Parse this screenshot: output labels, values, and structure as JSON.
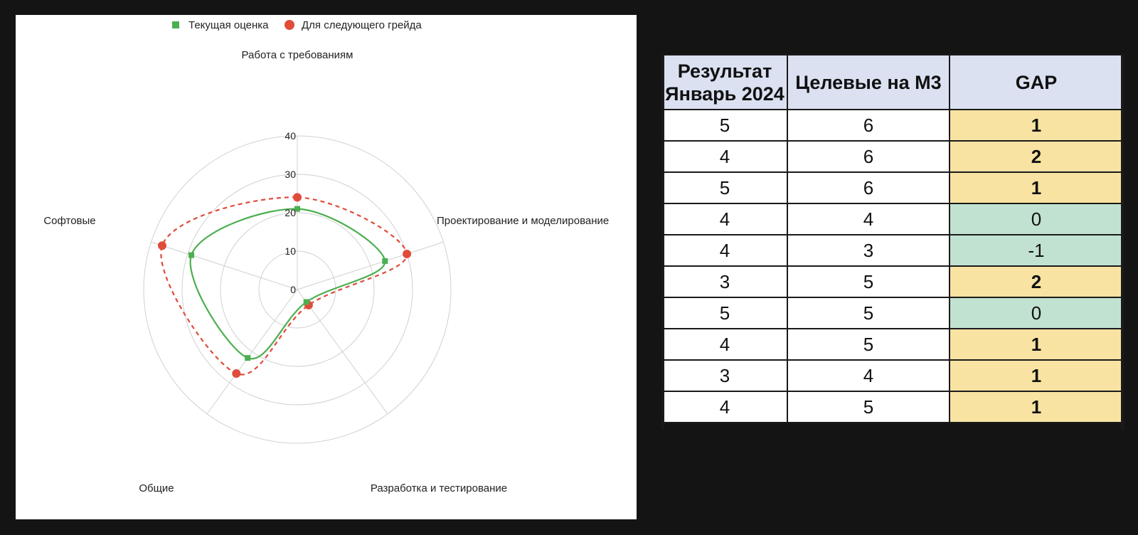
{
  "chart_data": {
    "type": "radar",
    "axes": [
      "Работа с требованиям",
      "Проектирование и моделирование",
      "Разработка и тестирование",
      "Общие",
      "Софтовые"
    ],
    "radial_ticks": [
      "0",
      "10",
      "20",
      "30",
      "40"
    ],
    "rlim": [
      0,
      40
    ],
    "grid": true,
    "legend_position": "top",
    "series": [
      {
        "name": "Текущая оценка",
        "values": [
          21,
          24,
          4,
          22,
          29
        ],
        "color": "#4caf50",
        "marker": "square",
        "line": "solid"
      },
      {
        "name": "Для следующего грейда",
        "values": [
          24,
          30,
          5,
          27,
          37
        ],
        "color": "#e04b3a",
        "marker": "circle",
        "line": "dashed"
      }
    ]
  },
  "table": {
    "headers": [
      "Результат Январь 2024",
      "Целевые на М3",
      "GAP"
    ],
    "rows": [
      {
        "result": "5",
        "target": "6",
        "gap": "1"
      },
      {
        "result": "4",
        "target": "6",
        "gap": "2"
      },
      {
        "result": "5",
        "target": "6",
        "gap": "1"
      },
      {
        "result": "4",
        "target": "4",
        "gap": "0"
      },
      {
        "result": "4",
        "target": "3",
        "gap": "-1"
      },
      {
        "result": "3",
        "target": "5",
        "gap": "2"
      },
      {
        "result": "5",
        "target": "5",
        "gap": "0"
      },
      {
        "result": "4",
        "target": "5",
        "gap": "1"
      },
      {
        "result": "3",
        "target": "4",
        "gap": "1"
      },
      {
        "result": "4",
        "target": "5",
        "gap": "1"
      }
    ]
  },
  "colors": {
    "gap_positive": "#f9e3a2",
    "gap_nonpositive": "#c2e2d1",
    "header_bg": "#dbe1f1",
    "grid": "#d0d0d0"
  }
}
